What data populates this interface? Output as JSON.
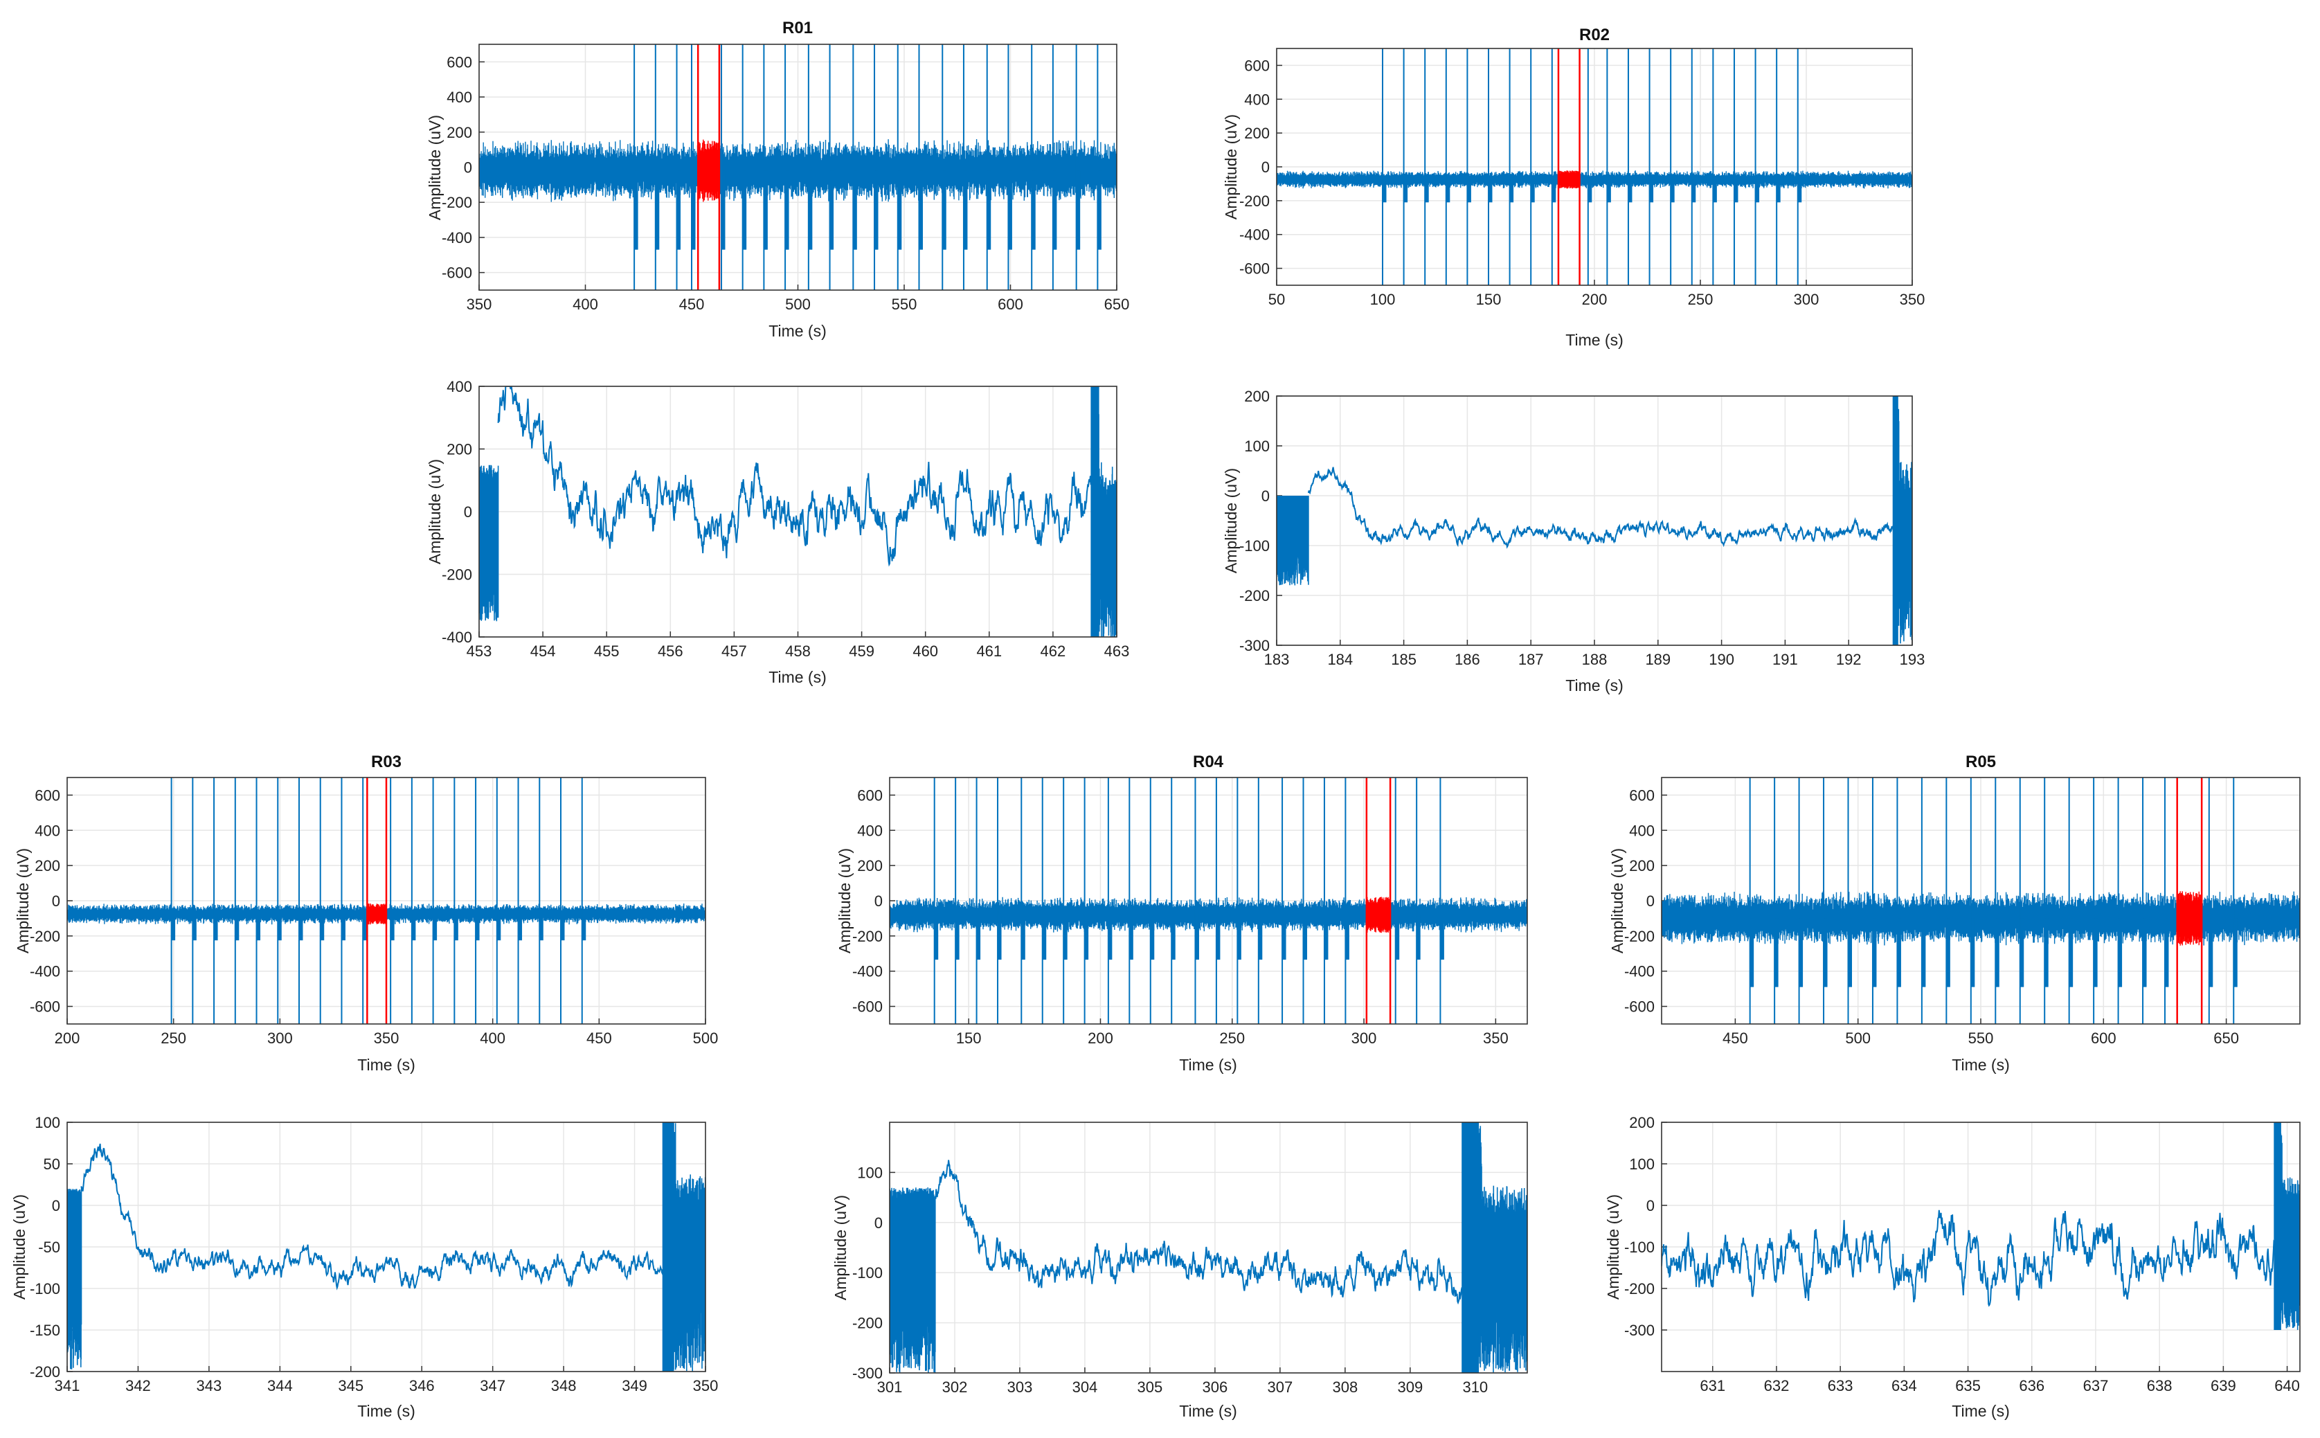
{
  "figure": {
    "background": "#ffffff"
  },
  "colors": {
    "signal": "#0072bd",
    "highlight": "#ff0000",
    "grid": "#e6e6e6",
    "axis": "#333333"
  },
  "chart_data": [
    {
      "id": "r01-overview",
      "type": "line",
      "title": "R01",
      "xlabel": "Time (s)",
      "ylabel": "Amplitude (uV)",
      "xlim": [
        350,
        650
      ],
      "ylim": [
        -700,
        700
      ],
      "xticks": [
        350,
        400,
        450,
        500,
        550,
        600,
        650
      ],
      "yticks": [
        -600,
        -400,
        -200,
        0,
        200,
        400,
        600
      ],
      "grid": true,
      "signal": {
        "kind": "noise",
        "mean": -20,
        "amp": 150,
        "seed": 11
      },
      "spikes": [
        423,
        433,
        443,
        450,
        464,
        474,
        484,
        494,
        505,
        515,
        526,
        536,
        547,
        557,
        568,
        578,
        589,
        599,
        610,
        620,
        631,
        641
      ],
      "highlight": {
        "start": 453,
        "end": 463
      }
    },
    {
      "id": "r02-overview",
      "type": "line",
      "title": "R02",
      "xlabel": "Time (s)",
      "ylabel": "Amplitude (uV)",
      "xlim": [
        50,
        350
      ],
      "ylim": [
        -700,
        700
      ],
      "xticks": [
        50,
        100,
        150,
        200,
        250,
        300,
        350
      ],
      "yticks": [
        -600,
        -400,
        -200,
        0,
        200,
        400,
        600
      ],
      "grid": true,
      "signal": {
        "kind": "noise",
        "mean": -75,
        "amp": 45,
        "seed": 23
      },
      "spikes": [
        100,
        110,
        120,
        130,
        140,
        150,
        160,
        170,
        180,
        197,
        206,
        216,
        226,
        236,
        246,
        256,
        266,
        276,
        286,
        296
      ],
      "highlight": {
        "start": 183,
        "end": 193
      }
    },
    {
      "id": "r01-detail",
      "type": "line",
      "title": "",
      "xlabel": "Time (s)",
      "ylabel": "Amplitude (uV)",
      "xlim": [
        453,
        463
      ],
      "ylim": [
        -400,
        400
      ],
      "xticks": [
        453,
        454,
        455,
        456,
        457,
        458,
        459,
        460,
        461,
        462,
        463
      ],
      "yticks": [
        -400,
        -200,
        0,
        200,
        400
      ],
      "grid": true,
      "signal": {
        "kind": "trace",
        "mean": 20,
        "amp": 75,
        "seed": 31
      },
      "burst_start": {
        "end": 453.3,
        "lo": -350,
        "hi": 150
      },
      "burst_end": {
        "start": 462.6,
        "lo": -420,
        "hi": 420
      },
      "onset_peak": {
        "t": 453.5,
        "v": 350
      }
    },
    {
      "id": "r02-detail",
      "type": "line",
      "title": "",
      "xlabel": "Time (s)",
      "ylabel": "Amplitude (uV)",
      "xlim": [
        183,
        193
      ],
      "ylim": [
        -300,
        200
      ],
      "xticks": [
        183,
        184,
        185,
        186,
        187,
        188,
        189,
        190,
        191,
        192,
        193
      ],
      "yticks": [
        -300,
        -200,
        -100,
        0,
        100,
        200
      ],
      "grid": true,
      "signal": {
        "kind": "trace",
        "mean": -75,
        "amp": 14,
        "seed": 37
      },
      "burst_start": {
        "end": 183.5,
        "lo": -180,
        "hi": 0
      },
      "burst_end": {
        "start": 192.7,
        "lo": -300,
        "hi": 200
      },
      "onset_peak": {
        "t": 183.8,
        "v": 45
      }
    },
    {
      "id": "r03-overview",
      "type": "line",
      "title": "R03",
      "xlabel": "Time (s)",
      "ylabel": "Amplitude (uV)",
      "xlim": [
        200,
        500
      ],
      "ylim": [
        -700,
        700
      ],
      "xticks": [
        200,
        250,
        300,
        350,
        400,
        450,
        500
      ],
      "yticks": [
        -600,
        -400,
        -200,
        0,
        200,
        400,
        600
      ],
      "grid": true,
      "signal": {
        "kind": "noise",
        "mean": -75,
        "amp": 50,
        "seed": 41
      },
      "spikes": [
        249,
        259,
        269,
        279,
        289,
        299,
        309,
        319,
        329,
        339,
        352,
        362,
        372,
        382,
        392,
        402,
        412,
        422,
        432,
        442
      ],
      "highlight": {
        "start": 341,
        "end": 350
      }
    },
    {
      "id": "r04-overview",
      "type": "line",
      "title": "R04",
      "xlabel": "Time (s)",
      "ylabel": "Amplitude (uV)",
      "xlim": [
        120,
        362
      ],
      "ylim": [
        -700,
        700
      ],
      "xticks": [
        150,
        200,
        250,
        300,
        350
      ],
      "yticks": [
        -600,
        -400,
        -200,
        0,
        200,
        400,
        600
      ],
      "grid": true,
      "signal": {
        "kind": "noise",
        "mean": -80,
        "amp": 85,
        "seed": 53
      },
      "spikes": [
        137,
        145,
        153,
        161,
        170,
        178,
        186,
        194,
        203,
        211,
        219,
        227,
        236,
        244,
        252,
        260,
        269,
        277,
        285,
        293,
        312,
        320,
        329
      ],
      "highlight": {
        "start": 301,
        "end": 310
      }
    },
    {
      "id": "r05-overview",
      "type": "line",
      "title": "R05",
      "xlabel": "Time (s)",
      "ylabel": "Amplitude (uV)",
      "xlim": [
        420,
        680
      ],
      "ylim": [
        -700,
        700
      ],
      "xticks": [
        450,
        500,
        550,
        600,
        650
      ],
      "yticks": [
        -600,
        -400,
        -200,
        0,
        200,
        400,
        600
      ],
      "grid": true,
      "signal": {
        "kind": "noise",
        "mean": -100,
        "amp": 130,
        "seed": 61
      },
      "spikes": [
        456,
        466,
        476,
        486,
        496,
        506,
        516,
        526,
        536,
        546,
        556,
        566,
        576,
        586,
        596,
        606,
        616,
        625,
        643,
        653
      ],
      "highlight": {
        "start": 630,
        "end": 640
      }
    },
    {
      "id": "r03-detail",
      "type": "line",
      "title": "",
      "xlabel": "Time (s)",
      "ylabel": "Amplitude (uV)",
      "xlim": [
        341,
        350
      ],
      "ylim": [
        -200,
        100
      ],
      "xticks": [
        341,
        342,
        343,
        344,
        345,
        346,
        347,
        348,
        349,
        350
      ],
      "yticks": [
        -200,
        -150,
        -100,
        -50,
        0,
        50,
        100
      ],
      "grid": true,
      "signal": {
        "kind": "trace",
        "mean": -75,
        "amp": 12,
        "seed": 71
      },
      "burst_start": {
        "end": 341.2,
        "lo": -200,
        "hi": 20
      },
      "burst_end": {
        "start": 349.4,
        "lo": -200,
        "hi": 100
      },
      "onset_peak": {
        "t": 341.45,
        "v": 62
      }
    },
    {
      "id": "r04-detail",
      "type": "line",
      "title": "",
      "xlabel": "Time (s)",
      "ylabel": "Amplitude (uV)",
      "xlim": [
        301,
        310.8
      ],
      "ylim": [
        -300,
        200
      ],
      "xticks": [
        301,
        302,
        303,
        304,
        305,
        306,
        307,
        308,
        309,
        310
      ],
      "yticks": [
        -300,
        -200,
        -100,
        0,
        100
      ],
      "grid": true,
      "signal": {
        "kind": "trace",
        "mean": -95,
        "amp": 30,
        "seed": 79
      },
      "burst_start": {
        "end": 301.7,
        "lo": -300,
        "hi": 70
      },
      "burst_end": {
        "start": 309.8,
        "lo": -300,
        "hi": 200
      },
      "onset_peak": {
        "t": 301.9,
        "v": 85
      }
    },
    {
      "id": "r05-detail",
      "type": "line",
      "title": "",
      "xlabel": "Time (s)",
      "ylabel": "Amplitude (uV)",
      "xlim": [
        630.2,
        640.2
      ],
      "ylim": [
        -400,
        200
      ],
      "xticks": [
        631,
        632,
        633,
        634,
        635,
        636,
        637,
        638,
        639,
        640
      ],
      "yticks": [
        -300,
        -200,
        -100,
        0,
        100,
        200
      ],
      "grid": true,
      "signal": {
        "kind": "trace",
        "mean": -130,
        "amp": 55,
        "seed": 89
      },
      "burst_end": {
        "start": 639.8,
        "lo": -300,
        "hi": 200
      }
    }
  ]
}
